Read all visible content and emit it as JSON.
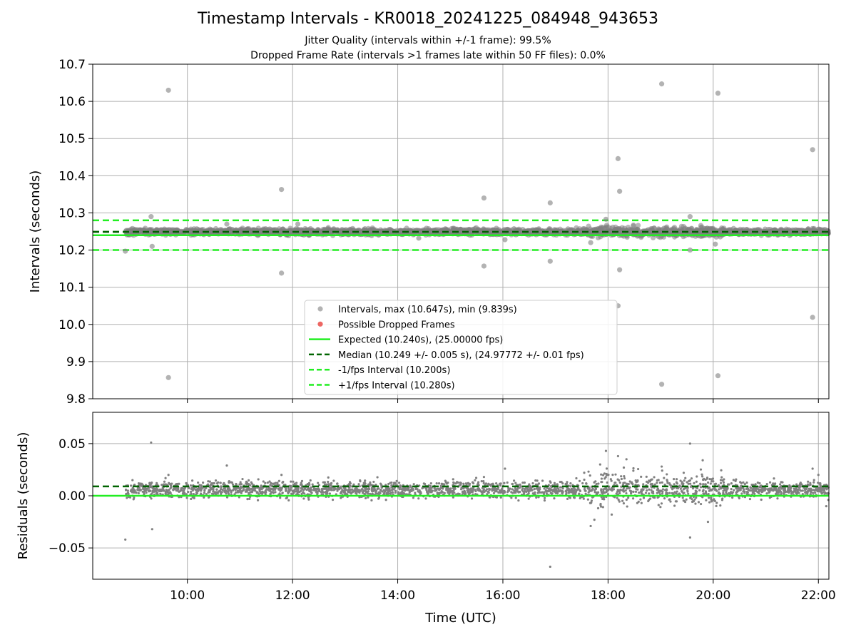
{
  "title": "Timestamp Intervals - KR0018_20241225_084948_943653",
  "subtitle_1": "Jitter Quality (intervals within +/-1 frame): 99.5%",
  "subtitle_2": "Dropped Frame Rate (intervals >1 frames late within 50 FF files): 0.0%",
  "colors": {
    "points": "#808080",
    "dropped": "#e8413c",
    "expected": "#22ee22",
    "median": "#006400",
    "bounds": "#22ee22",
    "grid": "#b0b0b0"
  },
  "chart_data": [
    {
      "type": "scatter",
      "ylabel": "Intervals (seconds)",
      "xlabel": "",
      "xlim": [
        8.2,
        22.2
      ],
      "ylim": [
        9.8,
        10.7
      ],
      "yticks": [
        "10.7",
        "10.6",
        "10.5",
        "10.4",
        "10.3",
        "10.2",
        "10.1",
        "10.0",
        "9.9",
        "9.8"
      ],
      "grid": true,
      "legend_position": "lower center",
      "reference_lines": [
        {
          "name": "Expected (10.240s), (25.00000 fps)",
          "y": 10.24,
          "style": "solid",
          "color": "#22ee22"
        },
        {
          "name": "Median (10.249 +/- 0.005 s), (24.97772 +/- 0.01 fps)",
          "y": 10.249,
          "style": "dashed",
          "color": "#006400"
        },
        {
          "name": "-1/fps Interval (10.200s)",
          "y": 10.2,
          "style": "dashed",
          "color": "#22ee22"
        },
        {
          "name": "+1/fps Interval (10.280s)",
          "y": 10.28,
          "style": "dashed",
          "color": "#22ee22"
        }
      ],
      "series": [
        {
          "name": "Intervals, max (10.647s), min (9.839s)",
          "color": "#808080",
          "band": {
            "x_start": 8.83,
            "x_end": 22.2,
            "center": 10.249,
            "spread": 0.008
          }
        },
        {
          "name": "Possible Dropped Frames",
          "color": "#e8413c",
          "values": []
        }
      ],
      "outliers": [
        [
          8.82,
          10.197
        ],
        [
          9.31,
          10.29
        ],
        [
          9.33,
          10.21
        ],
        [
          9.64,
          10.63
        ],
        [
          9.64,
          9.857
        ],
        [
          11.79,
          10.363
        ],
        [
          11.79,
          10.138
        ],
        [
          15.64,
          10.34
        ],
        [
          15.64,
          10.157
        ],
        [
          16.9,
          10.327
        ],
        [
          16.9,
          10.17
        ],
        [
          17.96,
          10.283
        ],
        [
          18.19,
          10.446
        ],
        [
          18.22,
          10.358
        ],
        [
          18.22,
          10.147
        ],
        [
          18.19,
          10.05
        ],
        [
          19.02,
          10.647
        ],
        [
          19.02,
          9.839
        ],
        [
          19.56,
          10.29
        ],
        [
          19.56,
          10.2
        ],
        [
          20.09,
          10.622
        ],
        [
          20.09,
          9.862
        ],
        [
          21.89,
          10.47
        ],
        [
          21.89,
          10.019
        ],
        [
          20.04,
          10.216
        ],
        [
          17.67,
          10.22
        ],
        [
          16.04,
          10.228
        ],
        [
          12.1,
          10.27
        ],
        [
          10.75,
          10.27
        ],
        [
          14.4,
          10.232
        ]
      ]
    },
    {
      "type": "scatter",
      "ylabel": "Residuals (seconds)",
      "xlabel": "Time (UTC)",
      "xlim": [
        8.2,
        22.2
      ],
      "ylim": [
        -0.08,
        0.08
      ],
      "xticks": [
        "10:00",
        "12:00",
        "14:00",
        "16:00",
        "18:00",
        "20:00",
        "22:00"
      ],
      "yticks": [
        "0.05",
        "0.00",
        "−0.05"
      ],
      "grid": true,
      "reference_lines": [
        {
          "name": "Expected",
          "y": 0.0,
          "style": "solid",
          "color": "#22ee22"
        },
        {
          "name": "Median",
          "y": 0.009,
          "style": "dashed",
          "color": "#006400"
        }
      ],
      "series": [
        {
          "name": "Residuals",
          "color": "#808080",
          "band": {
            "x_start": 8.83,
            "x_end": 22.2,
            "center": 0.006,
            "spread": 0.008
          }
        }
      ],
      "outliers": [
        [
          8.82,
          -0.042
        ],
        [
          9.31,
          0.051
        ],
        [
          9.33,
          -0.032
        ],
        [
          9.64,
          0.02
        ],
        [
          10.75,
          0.029
        ],
        [
          11.79,
          0.02
        ],
        [
          15.64,
          0.018
        ],
        [
          16.04,
          0.026
        ],
        [
          16.9,
          -0.068
        ],
        [
          17.67,
          -0.029
        ],
        [
          17.74,
          -0.023
        ],
        [
          17.96,
          0.043
        ],
        [
          18.07,
          -0.018
        ],
        [
          18.19,
          0.038
        ],
        [
          18.35,
          0.035
        ],
        [
          19.02,
          0.028
        ],
        [
          19.56,
          0.05
        ],
        [
          19.56,
          -0.04
        ],
        [
          19.8,
          0.034
        ],
        [
          19.9,
          -0.025
        ],
        [
          21.89,
          0.026
        ],
        [
          22.0,
          0.02
        ],
        [
          22.15,
          -0.01
        ],
        [
          18.3,
          0.027
        ],
        [
          17.85,
          0.03
        ]
      ]
    }
  ]
}
